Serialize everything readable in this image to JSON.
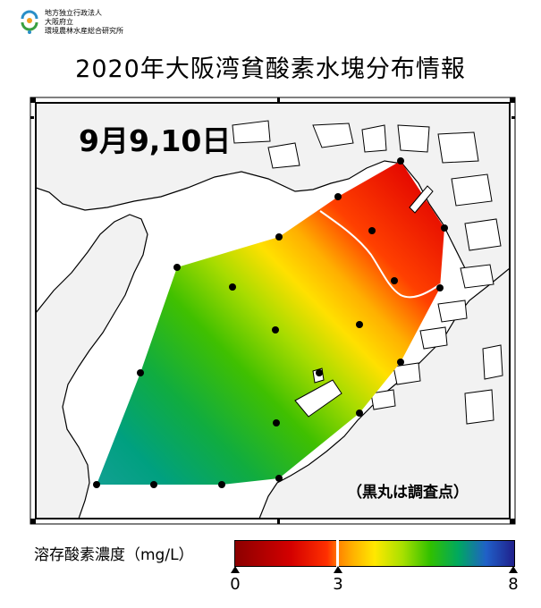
{
  "organization": {
    "line1": "地方独立行政法人",
    "line2": "大阪府立",
    "line3": "環境農林水産総合研究所"
  },
  "title": "2020年大阪湾貧酸素水塊分布情報",
  "map": {
    "date_label": "9月9,10日",
    "note": "（黒丸は調査点）",
    "colors": {
      "land": "#f2f2f2",
      "sea": "#ffffff",
      "coast": "#000000",
      "contour_3mgL": "#ffffff"
    },
    "stations_count_shown": 22
  },
  "legend": {
    "title": "溶存酸素濃度（mg/L）",
    "ticks": [
      "0",
      "3",
      "8"
    ],
    "tick_values": [
      0,
      3,
      8
    ],
    "min": 0,
    "max": 8
  }
}
